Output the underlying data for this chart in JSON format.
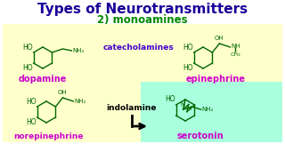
{
  "title": "Types of Neurotransmitters",
  "title_color": "#1a0099",
  "subtitle": "2) monoamines",
  "subtitle_color": "#008800",
  "bg_color": "#ffffff",
  "catechol_box_color": "#ffffcc",
  "indolamine_box_color": "#aaffdd",
  "catecholamines_label": "catecholamines",
  "catecholamines_color": "#4400cc",
  "indolamine_label": "indolamine",
  "indolamine_color": "#000000",
  "dopamine_label": "dopamine",
  "epinephrine_label": "epinephrine",
  "norepinephrine_label": "norepinephrine",
  "serotonin_label": "serotonin",
  "compound_label_color": "#cc00cc",
  "struct_color": "#006600",
  "arrow_color": "#000000"
}
